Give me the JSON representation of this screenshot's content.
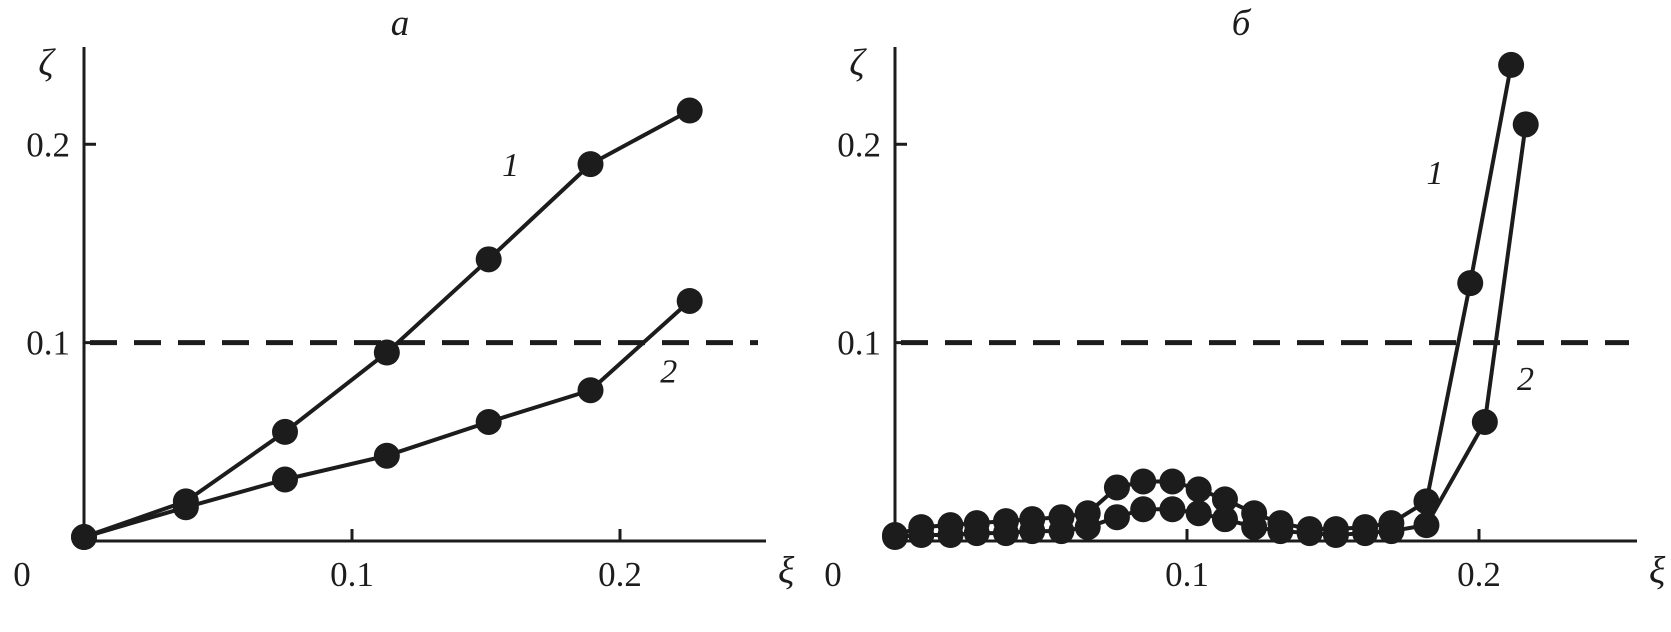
{
  "style": {
    "ink": "#1c1c1c",
    "background": "#ffffff",
    "marker_radius": 13,
    "line_width": 4,
    "dash_pattern": "27 17"
  },
  "chart_data": [
    {
      "type": "line",
      "panel_label": "a",
      "xlabel": "ξ",
      "ylabel": "ζ",
      "xlim": [
        0,
        0.25
      ],
      "ylim": [
        0,
        0.245
      ],
      "grid": false,
      "legend": "inline-numeric-labels",
      "xticks": [
        {
          "v": 0,
          "label": "0"
        },
        {
          "v": 0.1,
          "label": "0.1"
        },
        {
          "v": 0.2,
          "label": "0.2"
        }
      ],
      "yticks": [
        {
          "v": 0.1,
          "label": "0.1"
        },
        {
          "v": 0.2,
          "label": "0.2"
        }
      ],
      "dashed_y": 0.1,
      "series": [
        {
          "name": "1",
          "label": {
            "text": "1",
            "x": 0.156,
            "y": 0.184
          },
          "x": [
            0,
            0.038,
            0.075,
            0.113,
            0.151,
            0.189,
            0.226
          ],
          "y": [
            0.002,
            0.02,
            0.055,
            0.095,
            0.142,
            0.19,
            0.217
          ]
        },
        {
          "name": "2",
          "label": {
            "text": "2",
            "x": 0.215,
            "y": 0.08
          },
          "x": [
            0,
            0.038,
            0.075,
            0.113,
            0.151,
            0.189,
            0.226
          ],
          "y": [
            0.002,
            0.017,
            0.031,
            0.043,
            0.06,
            0.076,
            0.121
          ]
        }
      ]
    },
    {
      "type": "line",
      "panel_label": "б",
      "xlabel": "ξ",
      "ylabel": "ζ",
      "xlim": [
        0,
        0.25
      ],
      "ylim": [
        0,
        0.245
      ],
      "grid": false,
      "legend": "inline-numeric-labels",
      "xticks": [
        {
          "v": 0,
          "label": "0"
        },
        {
          "v": 0.1,
          "label": "0.1"
        },
        {
          "v": 0.2,
          "label": "0.2"
        }
      ],
      "yticks": [
        {
          "v": 0.1,
          "label": "0.1"
        },
        {
          "v": 0.2,
          "label": "0.2"
        }
      ],
      "dashed_y": 0.1,
      "series": [
        {
          "name": "1",
          "label": {
            "text": "1",
            "x": 0.182,
            "y": 0.18
          },
          "x": [
            0,
            0.009,
            0.019,
            0.028,
            0.038,
            0.047,
            0.057,
            0.066,
            0.076,
            0.085,
            0.095,
            0.104,
            0.113,
            0.123,
            0.132,
            0.142,
            0.151,
            0.161,
            0.17,
            0.182,
            0.197,
            0.211
          ],
          "y": [
            0.003,
            0.007,
            0.008,
            0.009,
            0.01,
            0.011,
            0.012,
            0.014,
            0.027,
            0.03,
            0.03,
            0.026,
            0.021,
            0.014,
            0.009,
            0.006,
            0.006,
            0.007,
            0.009,
            0.02,
            0.13,
            0.24
          ]
        },
        {
          "name": "2",
          "label": {
            "text": "2",
            "x": 0.213,
            "y": 0.076
          },
          "x": [
            0,
            0.009,
            0.019,
            0.028,
            0.038,
            0.047,
            0.057,
            0.066,
            0.076,
            0.085,
            0.095,
            0.104,
            0.113,
            0.123,
            0.132,
            0.142,
            0.151,
            0.161,
            0.17,
            0.182,
            0.202,
            0.216
          ],
          "y": [
            0.002,
            0.003,
            0.003,
            0.004,
            0.004,
            0.005,
            0.005,
            0.007,
            0.012,
            0.016,
            0.016,
            0.014,
            0.011,
            0.007,
            0.005,
            0.004,
            0.003,
            0.004,
            0.005,
            0.008,
            0.06,
            0.21
          ]
        }
      ]
    }
  ]
}
